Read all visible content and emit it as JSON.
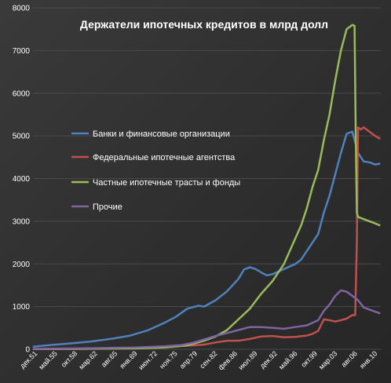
{
  "chart_data": {
    "type": "line",
    "title": "Держатели ипотечных кредитов в млрд долл",
    "xlabel": "",
    "ylabel": "",
    "ylim": [
      0,
      8000
    ],
    "yticks": [
      0,
      1000,
      2000,
      3000,
      4000,
      5000,
      6000,
      7000,
      8000
    ],
    "x_tick_labels": [
      "дек.51",
      "май.55",
      "окт.58",
      "мар.62",
      "авг.65",
      "янв.69",
      "июн.72",
      "ноя.75",
      "апр.79",
      "сен.82",
      "фев.86",
      "июл.89",
      "дек.92",
      "май.96",
      "окт.99",
      "мар.03",
      "авг.06",
      "янв.10"
    ],
    "x_range": [
      1951.92,
      2013.0
    ],
    "grid": true,
    "legend_position": "center-left",
    "series": [
      {
        "name": "Банки и финансовые организации",
        "color": "#4f81bd",
        "x": [
          1951.9,
          1955,
          1958,
          1962,
          1966,
          1969,
          1972,
          1975,
          1977,
          1979,
          1981,
          1982,
          1984,
          1986,
          1988,
          1989,
          1990,
          1991,
          1992,
          1993,
          1994,
          1996,
          1998,
          1999,
          2000,
          2001,
          2002,
          2003,
          2004,
          2005,
          2006,
          2007,
          2008,
          2009,
          2010,
          2011,
          2012,
          2012.9
        ],
        "values": [
          60,
          100,
          130,
          180,
          250,
          320,
          440,
          620,
          760,
          950,
          1020,
          1000,
          1150,
          1360,
          1650,
          1870,
          1920,
          1880,
          1800,
          1730,
          1760,
          1880,
          2000,
          2100,
          2300,
          2500,
          2700,
          3200,
          3600,
          4100,
          4600,
          5050,
          5100,
          4600,
          4400,
          4380,
          4330,
          4350
        ]
      },
      {
        "name": "Федеральные ипотечные агентства",
        "color": "#c0504d",
        "x": [
          1951.9,
          1960,
          1970,
          1975,
          1980,
          1982,
          1984,
          1986,
          1988,
          1990,
          1992,
          1994,
          1996,
          1998,
          2000,
          2001,
          2002,
          2003,
          2004,
          2005,
          2006,
          2007,
          2008,
          2008.5,
          2008.8,
          2009,
          2009.5,
          2010,
          2011,
          2012,
          2012.9
        ],
        "values": [
          5,
          10,
          30,
          60,
          90,
          110,
          160,
          200,
          200,
          240,
          300,
          310,
          280,
          290,
          320,
          360,
          430,
          700,
          680,
          650,
          680,
          720,
          800,
          800,
          2500,
          5200,
          5150,
          5200,
          5100,
          5000,
          4930
        ]
      },
      {
        "name": "Частные ипотечные трасты и фонды",
        "color": "#9bbb59",
        "x": [
          1951.9,
          1960,
          1970,
          1975,
          1979,
          1982,
          1984,
          1986,
          1988,
          1990,
          1992,
          1994,
          1996,
          1998,
          1999,
          2000,
          2001,
          2002,
          2003,
          2004,
          2005,
          2006,
          2007,
          2007.5,
          2008,
          2008.4,
          2008.6,
          2008.8,
          2009,
          2010,
          2011,
          2012,
          2012.9
        ],
        "values": [
          5,
          10,
          20,
          40,
          90,
          200,
          300,
          450,
          700,
          950,
          1300,
          1600,
          2000,
          2600,
          2900,
          3300,
          3800,
          4200,
          4900,
          5500,
          6300,
          7000,
          7500,
          7550,
          7600,
          7580,
          5000,
          3200,
          3100,
          3050,
          3000,
          2950,
          2900
        ]
      },
      {
        "name": "Прочие",
        "color": "#8064a2",
        "x": [
          1951.9,
          1960,
          1970,
          1975,
          1978,
          1980,
          1982,
          1984,
          1986,
          1988,
          1990,
          1992,
          1994,
          1996,
          1998,
          2000,
          2002,
          2003,
          2004,
          2005,
          2006,
          2007,
          2008,
          2009,
          2010,
          2011,
          2012,
          2012.9
        ],
        "values": [
          10,
          20,
          40,
          70,
          100,
          150,
          230,
          310,
          380,
          450,
          520,
          520,
          500,
          480,
          520,
          560,
          680,
          900,
          1050,
          1250,
          1380,
          1350,
          1250,
          1150,
          980,
          930,
          880,
          840
        ]
      }
    ]
  }
}
